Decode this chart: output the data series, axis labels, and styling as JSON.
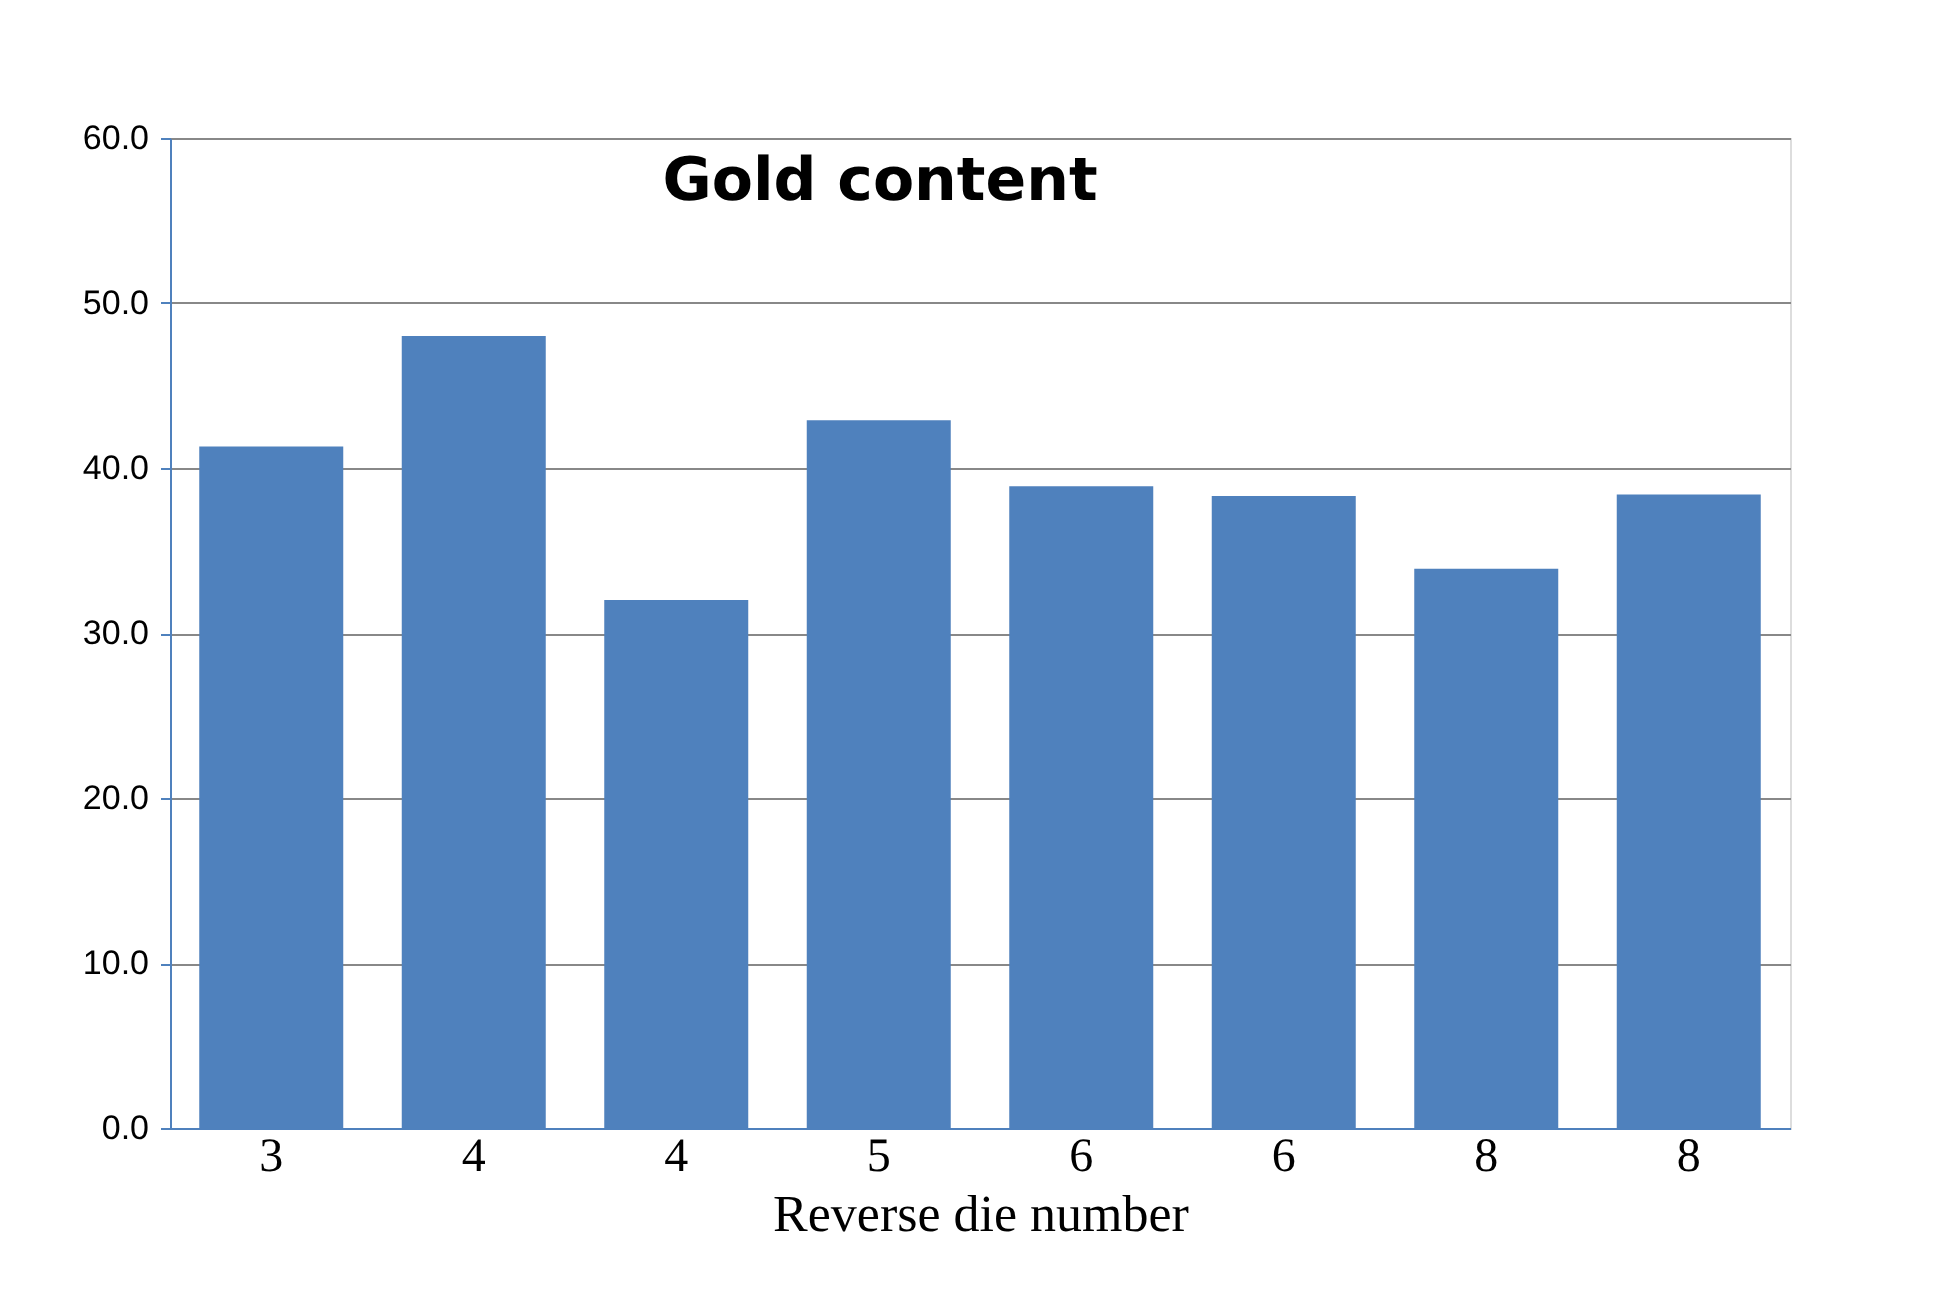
{
  "chart_data": {
    "type": "bar",
    "title": "Gold content",
    "xlabel": "Reverse die number",
    "categories": [
      "3",
      "4",
      "4",
      "5",
      "6",
      "6",
      "8",
      "8"
    ],
    "values": [
      41.3,
      48.0,
      32.0,
      42.9,
      38.9,
      38.3,
      33.9,
      38.4
    ],
    "color": "#4f81bd",
    "ylim": [
      0,
      60
    ],
    "yticks": [
      {
        "value": 0,
        "label": "0.0"
      },
      {
        "value": 10,
        "label": "10.0"
      },
      {
        "value": 20,
        "label": "20.0"
      },
      {
        "value": 30,
        "label": "30.0"
      },
      {
        "value": 40,
        "label": "40.0"
      },
      {
        "value": 50,
        "label": "50.0"
      },
      {
        "value": 60,
        "label": "60.0"
      }
    ],
    "grid": "y"
  }
}
